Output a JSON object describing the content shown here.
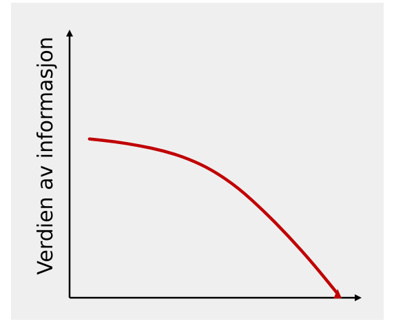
{
  "chart_data": {
    "type": "line",
    "title": "",
    "xlabel": "",
    "ylabel": "Verdien av informasjon",
    "grid": false,
    "legend": "none",
    "xlim": [
      0,
      10
    ],
    "ylim": [
      0,
      10
    ],
    "series": [
      {
        "x": [
          0,
          1,
          2,
          3,
          4,
          5,
          6,
          7,
          8,
          9,
          10
        ],
        "y": [
          6.0,
          5.9,
          5.75,
          5.55,
          5.25,
          4.8,
          4.15,
          3.3,
          2.35,
          1.3,
          0.15
        ]
      }
    ],
    "colors": {
      "background": "#efefef",
      "axis": "#000000",
      "curve": "#c00000"
    }
  }
}
